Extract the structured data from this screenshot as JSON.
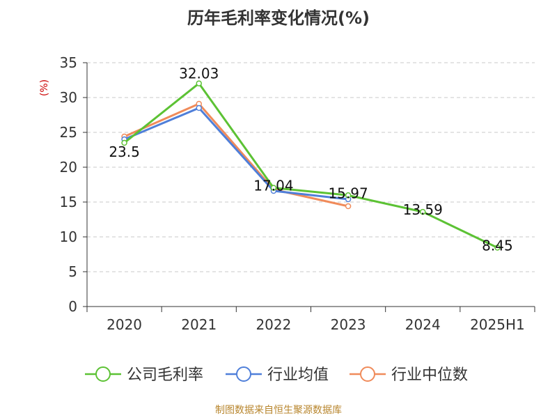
{
  "chart_data": {
    "type": "line",
    "title": "历年毛利率变化情况(%)",
    "ylabel": "(%)",
    "xlabel": "",
    "categories": [
      "2020",
      "2021",
      "2022",
      "2023",
      "2024",
      "2025H1"
    ],
    "ylim": [
      0,
      35
    ],
    "yticks": [
      0,
      5,
      10,
      15,
      20,
      25,
      30,
      35
    ],
    "grid": true,
    "legend_position": "bottom",
    "series": [
      {
        "name": "公司毛利率",
        "color": "#5cc234",
        "values": [
          23.5,
          32.03,
          17.04,
          15.97,
          13.59,
          8.45
        ],
        "data_labels": [
          "23.5",
          "32.03",
          "17.04",
          "15.97",
          "13.59",
          "8.45"
        ]
      },
      {
        "name": "行业均值",
        "color": "#4f7fd9",
        "values": [
          24.0,
          28.5,
          16.6,
          15.4,
          null,
          null
        ]
      },
      {
        "name": "行业中位数",
        "color": "#f08b5a",
        "values": [
          24.4,
          29.1,
          16.8,
          14.4,
          null,
          null
        ]
      }
    ]
  },
  "footer": "制图数据来自恒生聚源数据库"
}
